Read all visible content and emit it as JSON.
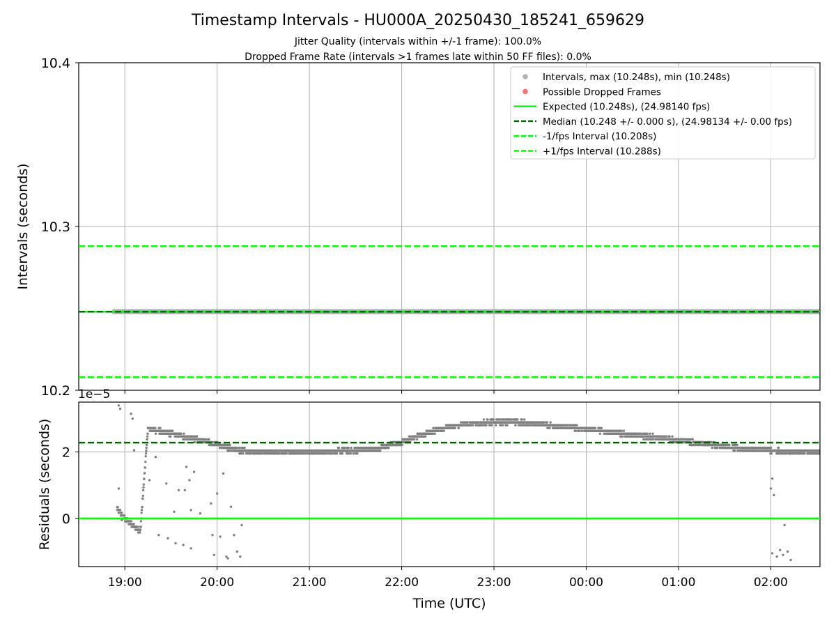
{
  "header": {
    "title": "Timestamp Intervals - HU000A_20250430_185241_659629",
    "subtitle_1": "Jitter Quality (intervals within +/-1 frame): 100.0%",
    "subtitle_2": "Dropped Frame Rate (intervals >1 frames late within 50 FF files): 0.0%"
  },
  "colors": {
    "points": "#808080",
    "dropped": "#ff4d4d",
    "expected": "#00ff00",
    "median": "#006400",
    "fps_interval": "#00ff00",
    "grid": "#b0b0b0"
  },
  "chart_data": [
    {
      "type": "scatter",
      "ylabel": "Intervals (seconds)",
      "ylim": [
        10.2,
        10.4
      ],
      "y_ticks": [
        10.2,
        10.3,
        10.4
      ],
      "y_tick_labels": [
        "10.2",
        "10.3",
        "10.4"
      ],
      "grid": true,
      "legend_position": "top-right",
      "legend": [
        {
          "label": "Intervals, max (10.248s), min (10.248s)",
          "kind": "marker",
          "color": "#a0a0a0"
        },
        {
          "label": "Possible Dropped Frames",
          "kind": "marker",
          "color": "#ff4d4d"
        },
        {
          "label": "Expected (10.248s), (24.98140 fps)",
          "kind": "solid",
          "color": "#00ff00"
        },
        {
          "label": "Median (10.248 +/- 0.000 s), (24.98134 +/- 0.00 fps)",
          "kind": "dashed",
          "color": "#006400"
        },
        {
          "label": "-1/fps Interval (10.208s)",
          "kind": "dashed",
          "color": "#00ff00"
        },
        {
          "label": "+1/fps Interval (10.288s)",
          "kind": "dashed",
          "color": "#00ff00"
        }
      ],
      "series": [
        {
          "name": "Intervals",
          "x_range": [
            "18:53",
            "02:34"
          ],
          "y": 10.248
        }
      ],
      "reference_lines": {
        "expected": 10.248,
        "median": 10.248,
        "minus_fps": 10.208,
        "plus_fps": 10.288
      }
    },
    {
      "type": "scatter",
      "xlabel": "Time (UTC)",
      "ylabel": "Residuals (seconds)",
      "y_scale_label": "1e−5",
      "ylim": [
        -1.45,
        3.5
      ],
      "y_unit_multiplier": 1e-05,
      "y_ticks": [
        0,
        2
      ],
      "y_tick_labels": [
        "0",
        "2"
      ],
      "xlim": [
        "18:30",
        "02:32"
      ],
      "x_ticks": [
        "19:00",
        "20:00",
        "21:00",
        "22:00",
        "23:00",
        "00:00",
        "01:00",
        "02:00"
      ],
      "grid": true,
      "reference_lines": {
        "zero": 0,
        "median": 2.28
      },
      "series": [
        {
          "name": "Residuals",
          "trend": [
            [
              "18:55",
              0.3
            ],
            [
              "19:00",
              0.0
            ],
            [
              "19:05",
              -0.2
            ],
            [
              "19:10",
              -0.4
            ],
            [
              "19:15",
              2.7
            ],
            [
              "19:25",
              2.6
            ],
            [
              "19:35",
              2.5
            ],
            [
              "19:45",
              2.4
            ],
            [
              "19:55",
              2.3
            ],
            [
              "20:05",
              2.15
            ],
            [
              "20:15",
              2.05
            ],
            [
              "20:30",
              2.0
            ],
            [
              "21:00",
              2.0
            ],
            [
              "21:30",
              2.05
            ],
            [
              "21:45",
              2.1
            ],
            [
              "22:00",
              2.3
            ],
            [
              "22:15",
              2.55
            ],
            [
              "22:30",
              2.75
            ],
            [
              "22:45",
              2.85
            ],
            [
              "23:00",
              2.9
            ],
            [
              "23:15",
              2.9
            ],
            [
              "23:30",
              2.85
            ],
            [
              "23:45",
              2.75
            ],
            [
              "00:00",
              2.7
            ],
            [
              "00:15",
              2.6
            ],
            [
              "00:30",
              2.5
            ],
            [
              "00:45",
              2.45
            ],
            [
              "01:00",
              2.35
            ],
            [
              "01:15",
              2.25
            ],
            [
              "01:30",
              2.15
            ],
            [
              "01:45",
              2.1
            ],
            [
              "02:00",
              2.05
            ],
            [
              "02:15",
              2.0
            ],
            [
              "02:32",
              2.0
            ]
          ],
          "outliers": [
            [
              "18:56",
              3.4
            ],
            [
              "18:57",
              3.3
            ],
            [
              "18:56",
              0.9
            ],
            [
              "19:04",
              3.15
            ],
            [
              "19:05",
              3.0
            ],
            [
              "19:06",
              2.05
            ],
            [
              "19:16",
              1.15
            ],
            [
              "19:20",
              1.85
            ],
            [
              "19:27",
              1.05
            ],
            [
              "19:32",
              0.2
            ],
            [
              "19:35",
              0.85
            ],
            [
              "19:39",
              0.85
            ],
            [
              "19:40",
              1.55
            ],
            [
              "19:42",
              1.15
            ],
            [
              "19:43",
              0.25
            ],
            [
              "19:45",
              1.4
            ],
            [
              "19:49",
              0.15
            ],
            [
              "19:56",
              0.45
            ],
            [
              "19:57",
              -0.5
            ],
            [
              "19:58",
              -1.1
            ],
            [
              "20:00",
              0.75
            ],
            [
              "20:02",
              -0.55
            ],
            [
              "20:04",
              1.35
            ],
            [
              "20:06",
              -1.15
            ],
            [
              "20:07",
              -1.2
            ],
            [
              "20:09",
              0.35
            ],
            [
              "20:11",
              -0.5
            ],
            [
              "20:13",
              -1.0
            ],
            [
              "20:15",
              -1.15
            ],
            [
              "20:16",
              -0.2
            ],
            [
              "18:58",
              -0.05
            ],
            [
              "19:01",
              -0.1
            ],
            [
              "19:10",
              -0.35
            ],
            [
              "19:22",
              -0.5
            ],
            [
              "19:28",
              -0.6
            ],
            [
              "19:33",
              -0.75
            ],
            [
              "19:38",
              -0.8
            ],
            [
              "19:43",
              -0.9
            ],
            [
              "02:00",
              0.9
            ],
            [
              "02:01",
              1.2
            ],
            [
              "02:02",
              0.7
            ],
            [
              "02:01",
              -1.05
            ],
            [
              "02:04",
              -1.15
            ],
            [
              "02:06",
              -0.95
            ],
            [
              "02:08",
              -1.1
            ],
            [
              "02:09",
              -0.2
            ],
            [
              "02:11",
              -1.0
            ],
            [
              "02:13",
              -1.25
            ]
          ]
        }
      ]
    }
  ]
}
